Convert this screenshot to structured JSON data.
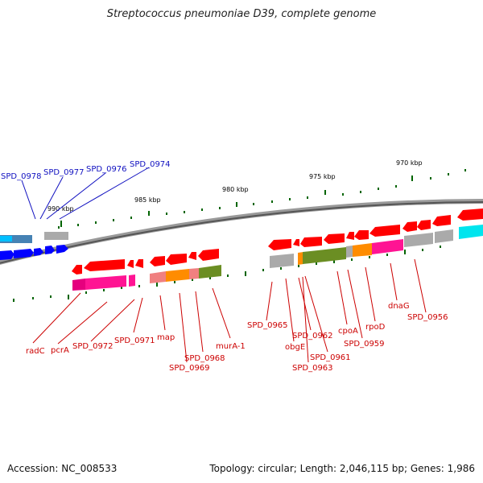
{
  "title": "Streptococcus pneumoniae D39, complete genome",
  "footer": {
    "accession": "Accession: NC_008533",
    "summary": "Topology: circular; Length: 2,046,115 bp; Genes: 1,986"
  },
  "ticks": [
    "990 kbp",
    "985 kbp",
    "980 kbp",
    "975 kbp",
    "970 kbp"
  ],
  "gene_labels": {
    "blue": [
      "SPD_0978",
      "SPD_0977",
      "SPD_0976",
      "SPD_0974"
    ],
    "red": [
      "radC",
      "pcrA",
      "SPD_0972",
      "SPD_0971",
      "map",
      "SPD_0969",
      "SPD_0968",
      "murA-1",
      "SPD_0965",
      "obgE",
      "SPD_0962",
      "SPD_0963",
      "SPD_0961",
      "cpoA",
      "SPD_0959",
      "rpoD",
      "dnaG",
      "SPD_0956"
    ]
  },
  "colors": {
    "forward_strand": "#0000ff",
    "reverse_strand": "#ff0000",
    "label_blue": "#1010c0",
    "label_red": "#cc0000",
    "backbone": "#808080",
    "tick": "#006400"
  }
}
